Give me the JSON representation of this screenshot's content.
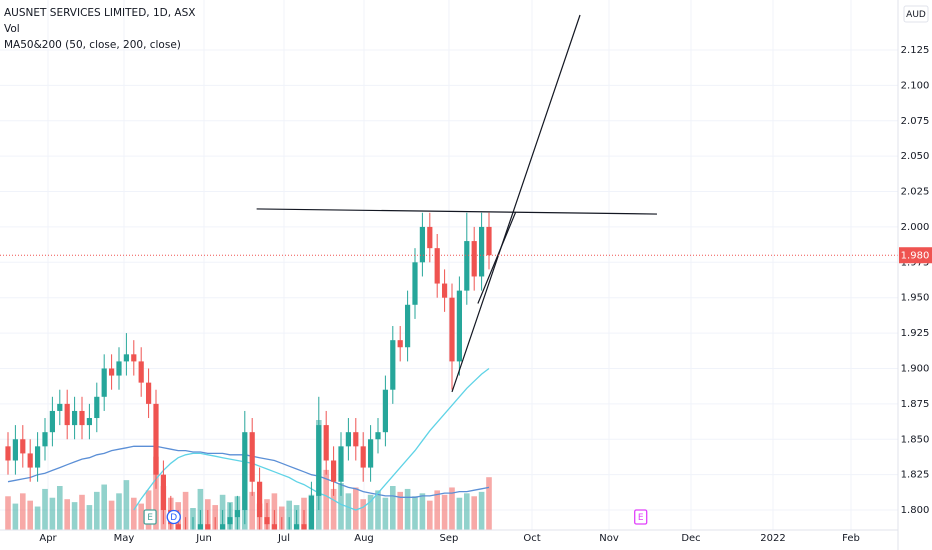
{
  "chart_data": {
    "type": "candlestick",
    "title": "AUSNET SERVICES LIMITED, 1D, ASX",
    "indicators": [
      "Vol",
      "MA50&200 (50, close, 200, close)"
    ],
    "currency": "AUD",
    "up_color": "#26a69a",
    "down_color": "#ef5350",
    "open": [
      1.845,
      1.835,
      1.85,
      1.84,
      1.83,
      1.845,
      1.855,
      1.87,
      1.875,
      1.86,
      1.87,
      1.86,
      1.865,
      1.88,
      1.9,
      1.895,
      1.905,
      1.91,
      1.905,
      1.89,
      1.875,
      1.825,
      1.8,
      1.79,
      1.785,
      1.78,
      1.785,
      1.79,
      1.785,
      1.78,
      1.79,
      1.795,
      1.8,
      1.855,
      1.82,
      1.795,
      1.79,
      1.785,
      1.78,
      1.785,
      1.79,
      1.785,
      1.81,
      1.86,
      1.835,
      1.82,
      1.845,
      1.855,
      1.845,
      1.83,
      1.85,
      1.855,
      1.885,
      1.92,
      1.915,
      1.945,
      1.975,
      2.0,
      1.985,
      1.96,
      1.95,
      1.905,
      1.955,
      1.99,
      1.965,
      2.0
    ],
    "high": [
      1.855,
      1.86,
      1.86,
      1.85,
      1.855,
      1.865,
      1.88,
      1.885,
      1.885,
      1.88,
      1.88,
      1.875,
      1.89,
      1.91,
      1.91,
      1.915,
      1.925,
      1.92,
      1.915,
      1.9,
      1.885,
      1.835,
      1.81,
      1.8,
      1.795,
      1.795,
      1.8,
      1.8,
      1.795,
      1.8,
      1.805,
      1.81,
      1.87,
      1.865,
      1.83,
      1.805,
      1.8,
      1.795,
      1.795,
      1.8,
      1.8,
      1.82,
      1.88,
      1.87,
      1.845,
      1.855,
      1.865,
      1.865,
      1.855,
      1.86,
      1.865,
      1.895,
      1.93,
      1.93,
      1.955,
      1.985,
      2.01,
      2.01,
      1.995,
      1.97,
      1.96,
      1.965,
      2.01,
      2.0,
      2.01,
      2.01
    ],
    "low": [
      1.825,
      1.825,
      1.83,
      1.82,
      1.82,
      1.835,
      1.845,
      1.86,
      1.85,
      1.85,
      1.85,
      1.85,
      1.855,
      1.87,
      1.885,
      1.885,
      1.895,
      1.895,
      1.88,
      1.865,
      1.815,
      1.79,
      1.78,
      1.775,
      1.77,
      1.77,
      1.775,
      1.775,
      1.77,
      1.77,
      1.78,
      1.785,
      1.79,
      1.81,
      1.785,
      1.78,
      1.775,
      1.77,
      1.77,
      1.775,
      1.775,
      1.775,
      1.8,
      1.825,
      1.81,
      1.81,
      1.835,
      1.835,
      1.82,
      1.82,
      1.84,
      1.845,
      1.875,
      1.905,
      1.905,
      1.935,
      1.965,
      1.975,
      1.95,
      1.94,
      1.885,
      1.895,
      1.945,
      1.955,
      1.955,
      1.97
    ],
    "close": [
      1.835,
      1.85,
      1.84,
      1.83,
      1.845,
      1.855,
      1.87,
      1.875,
      1.86,
      1.87,
      1.86,
      1.865,
      1.88,
      1.9,
      1.895,
      1.905,
      1.91,
      1.905,
      1.89,
      1.875,
      1.825,
      1.8,
      1.79,
      1.785,
      1.78,
      1.785,
      1.79,
      1.785,
      1.78,
      1.79,
      1.795,
      1.8,
      1.855,
      1.82,
      1.795,
      1.79,
      1.785,
      1.78,
      1.785,
      1.79,
      1.785,
      1.81,
      1.86,
      1.835,
      1.82,
      1.845,
      1.855,
      1.845,
      1.83,
      1.85,
      1.855,
      1.885,
      1.92,
      1.915,
      1.945,
      1.975,
      2.0,
      1.985,
      1.96,
      1.95,
      1.905,
      1.955,
      1.99,
      1.965,
      2.0,
      1.98
    ],
    "volume": [
      2.3,
      1.8,
      2.5,
      2.0,
      1.6,
      2.8,
      2.2,
      3.0,
      2.1,
      1.9,
      2.4,
      1.7,
      2.6,
      3.1,
      2.0,
      2.5,
      3.4,
      2.2,
      1.8,
      2.7,
      5.0,
      3.0,
      2.2,
      1.9,
      2.6,
      1.5,
      2.8,
      2.1,
      1.7,
      2.4,
      1.9,
      2.3,
      5.2,
      2.6,
      1.8,
      2.1,
      2.5,
      1.6,
      2.0,
      1.7,
      2.2,
      2.4,
      7.5,
      4.1,
      2.8,
      3.2,
      2.5,
      2.9,
      2.1,
      2.4,
      2.7,
      2.2,
      3.0,
      2.6,
      2.8,
      2.3,
      2.5,
      2.0,
      2.7,
      2.4,
      2.9,
      2.2,
      2.5,
      2.3,
      2.6,
      3.6
    ],
    "series": [
      {
        "color": "#5b8fd6",
        "values": [
          1.82,
          1.821,
          1.822,
          1.823,
          1.825,
          1.826,
          1.828,
          1.83,
          1.832,
          1.834,
          1.836,
          1.837,
          1.839,
          1.84,
          1.842,
          1.843,
          1.844,
          1.845,
          1.845,
          1.845,
          1.845,
          1.844,
          1.843,
          1.842,
          1.842,
          1.841,
          1.841,
          1.84,
          1.84,
          1.84,
          1.839,
          1.839,
          1.839,
          1.838,
          1.837,
          1.836,
          1.835,
          1.833,
          1.831,
          1.829,
          1.827,
          1.825,
          1.824,
          1.822,
          1.82,
          1.818,
          1.816,
          1.815,
          1.813,
          1.812,
          1.811,
          1.81,
          1.81,
          1.809,
          1.809,
          1.809,
          1.81,
          1.81,
          1.811,
          1.812,
          1.812,
          1.813,
          1.813,
          1.814,
          1.815,
          1.816
        ]
      },
      {
        "color": "#5fd3e6",
        "values": [
          null,
          null,
          null,
          null,
          null,
          null,
          null,
          null,
          null,
          null,
          null,
          null,
          null,
          null,
          null,
          null,
          null,
          1.8,
          1.808,
          1.815,
          1.822,
          1.828,
          1.833,
          1.837,
          1.839,
          1.84,
          1.84,
          1.839,
          1.838,
          1.837,
          1.836,
          1.835,
          1.834,
          1.833,
          1.831,
          1.829,
          1.827,
          1.825,
          1.823,
          1.82,
          1.818,
          1.815,
          1.812,
          1.81,
          1.807,
          1.804,
          1.802,
          1.8,
          1.802,
          1.806,
          1.812,
          1.818,
          1.824,
          1.83,
          1.836,
          1.842,
          1.849,
          1.856,
          1.862,
          1.868,
          1.874,
          1.88,
          1.886,
          1.891,
          1.896,
          1.9
        ]
      }
    ],
    "drawings": [
      {
        "x": [
          33.6,
          87.7
        ],
        "values": [
          2.0127,
          2.0091
        ]
      },
      {
        "x": [
          60,
          77.3
        ],
        "values": [
          1.8834,
          2.1497
        ]
      },
      {
        "x": [
          63.5,
          68.6
        ],
        "values": [
          1.9459,
          2.0104
        ]
      }
    ],
    "last_price": {
      "value": 1.98,
      "label": "1.980"
    },
    "events": [
      {
        "label": "E",
        "x": 19.2,
        "color": "#4ba39a",
        "shape": "box"
      },
      {
        "label": "D",
        "x": 22.4,
        "color": "#2962ff",
        "shape": "circle"
      },
      {
        "label": "E",
        "x": 85.5,
        "color": "#e040fb",
        "shape": "box"
      }
    ],
    "xlim": [
      -1.08,
      120.27
    ],
    "ylim": [
      1.7859,
      2.1603
    ],
    "xticks": [
      {
        "value": 5.41,
        "label": "Apr"
      },
      {
        "value": 15.68,
        "label": "May"
      },
      {
        "value": 26.49,
        "label": "Jun"
      },
      {
        "value": 37.3,
        "label": "Jul"
      },
      {
        "value": 48.11,
        "label": "Aug"
      },
      {
        "value": 59.59,
        "label": "Sep"
      },
      {
        "value": 70.81,
        "label": "Oct"
      },
      {
        "value": 81.22,
        "label": "Nov"
      },
      {
        "value": 92.3,
        "label": "Dec"
      },
      {
        "value": 103.38,
        "label": "2022"
      },
      {
        "value": 113.92,
        "label": "Feb"
      }
    ],
    "yticks": [
      {
        "value": 1.8,
        "label": "1.800"
      },
      {
        "value": 1.825,
        "label": "1.825"
      },
      {
        "value": 1.85,
        "label": "1.850"
      },
      {
        "value": 1.875,
        "label": "1.875"
      },
      {
        "value": 1.9,
        "label": "1.900"
      },
      {
        "value": 1.925,
        "label": "1.925"
      },
      {
        "value": 1.95,
        "label": "1.950"
      },
      {
        "value": 1.975,
        "label": "1.975"
      },
      {
        "value": 2.0,
        "label": "2.000"
      },
      {
        "value": 2.025,
        "label": "2.025"
      },
      {
        "value": 2.05,
        "label": "2.050"
      },
      {
        "value": 2.075,
        "label": "2.075"
      },
      {
        "value": 2.1,
        "label": "2.100"
      },
      {
        "value": 2.125,
        "label": "2.125"
      }
    ],
    "grid": true
  }
}
